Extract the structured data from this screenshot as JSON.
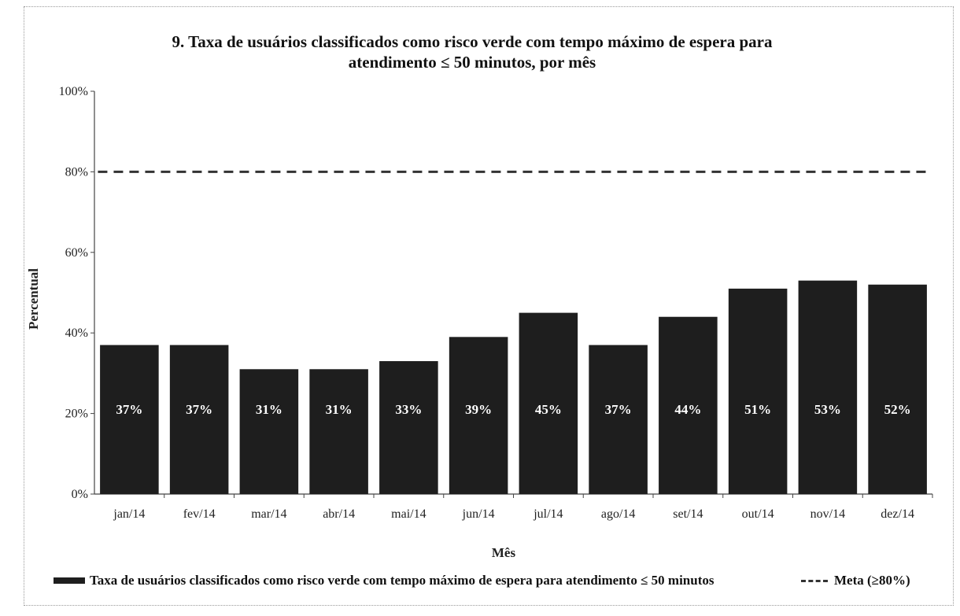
{
  "chart_data": {
    "type": "bar",
    "title": "9. Taxa de usuários classificados como risco verde com tempo máximo de espera para atendimento ≤ 50 minutos, por mês",
    "title_lines": [
      "9. Taxa de usuários classificados como risco verde com tempo máximo de espera para",
      "atendimento ≤ 50 minutos, por mês"
    ],
    "xlabel": "Mês",
    "ylabel": "Percentual",
    "ylim": [
      0,
      100
    ],
    "yticks": [
      "0%",
      "20%",
      "40%",
      "60%",
      "80%",
      "100%"
    ],
    "categories": [
      "jan/14",
      "fev/14",
      "mar/14",
      "abr/14",
      "mai/14",
      "jun/14",
      "jul/14",
      "ago/14",
      "set/14",
      "out/14",
      "nov/14",
      "dez/14"
    ],
    "series": [
      {
        "name": "Taxa de usuários classificados como risco verde com tempo máximo de espera para atendimento ≤ 50 minutos",
        "type": "bar",
        "values": [
          37,
          37,
          31,
          31,
          33,
          39,
          45,
          37,
          44,
          51,
          53,
          52
        ],
        "data_labels": [
          "37%",
          "37%",
          "31%",
          "31%",
          "33%",
          "39%",
          "45%",
          "37%",
          "44%",
          "51%",
          "53%",
          "52%"
        ],
        "color": "#1e1e1e"
      },
      {
        "name": "Meta (≥80%)",
        "type": "line",
        "style": "dashed",
        "values": [
          80,
          80,
          80,
          80,
          80,
          80,
          80,
          80,
          80,
          80,
          80,
          80
        ],
        "color": "#333333"
      }
    ],
    "grid": false,
    "legend_position": "bottom"
  }
}
